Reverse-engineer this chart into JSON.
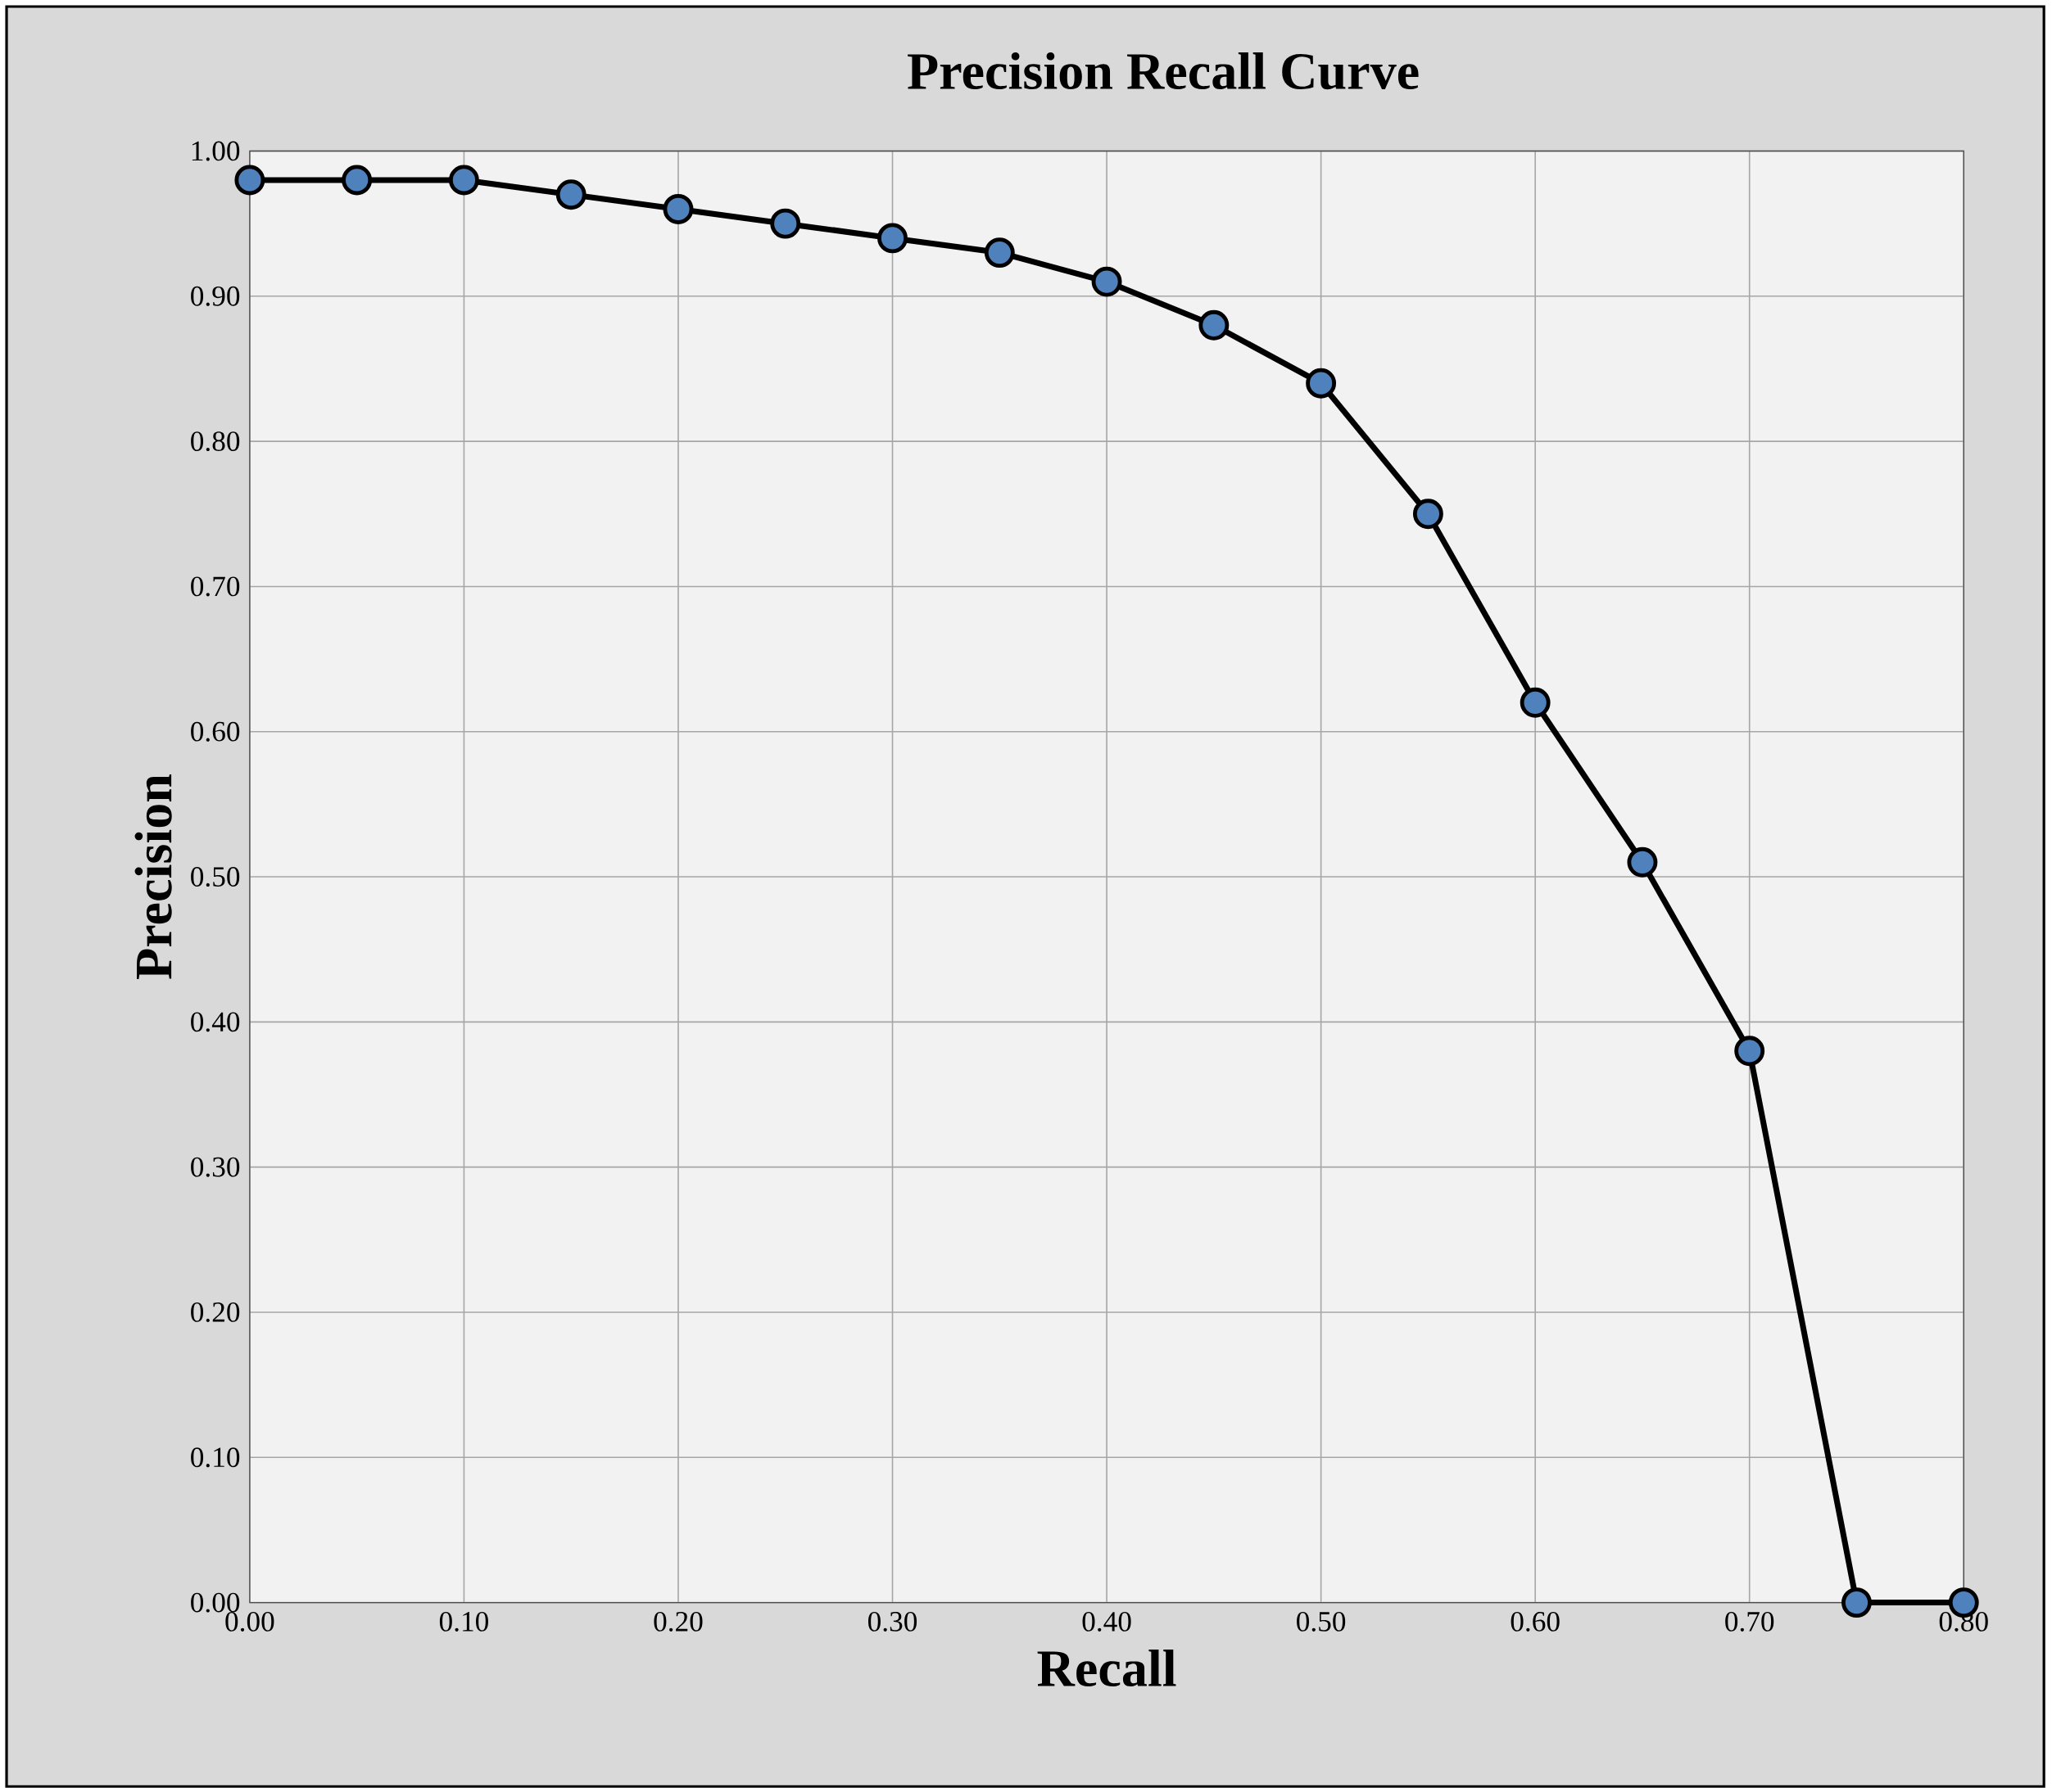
{
  "chart_data": {
    "type": "line",
    "title": "Precision  Recall Curve",
    "xlabel": "Recall",
    "ylabel": "Precision",
    "x": [
      0,
      0.05,
      0.1,
      0.15,
      0.2,
      0.25,
      0.3,
      0.35,
      0.4,
      0.45,
      0.5,
      0.55,
      0.6,
      0.65,
      0.7,
      0.75,
      0.8
    ],
    "series": [
      {
        "color": "#4f81bd",
        "values": [
          0.98,
          0.98,
          0.98,
          0.97,
          0.96,
          0.95,
          0.94,
          0.93,
          0.91,
          0.88,
          0.84,
          0.75,
          0.62,
          0.51,
          0.38,
          0,
          0
        ]
      }
    ],
    "xlim": [
      0,
      0.8
    ],
    "ylim": [
      0,
      1
    ],
    "xticks": [
      {
        "value": 0,
        "label": "0.00"
      },
      {
        "value": 0.1,
        "label": "0.10"
      },
      {
        "value": 0.2,
        "label": "0.20"
      },
      {
        "value": 0.3,
        "label": "0.30"
      },
      {
        "value": 0.4,
        "label": "0.40"
      },
      {
        "value": 0.5,
        "label": "0.50"
      },
      {
        "value": 0.6,
        "label": "0.60"
      },
      {
        "value": 0.7,
        "label": "0.70"
      },
      {
        "value": 0.8,
        "label": "0.80"
      }
    ],
    "yticks": [
      {
        "value": 0,
        "label": "0.00"
      },
      {
        "value": 0.1,
        "label": "0.10"
      },
      {
        "value": 0.2,
        "label": "0.20"
      },
      {
        "value": 0.3,
        "label": "0.30"
      },
      {
        "value": 0.4,
        "label": "0.40"
      },
      {
        "value": 0.5,
        "label": "0.50"
      },
      {
        "value": 0.6,
        "label": "0.60"
      },
      {
        "value": 0.7,
        "label": "0.70"
      },
      {
        "value": 0.8,
        "label": "0.80"
      },
      {
        "value": 0.9,
        "label": "0.90"
      },
      {
        "value": 1,
        "label": "1.00"
      }
    ],
    "grid": true,
    "marker": "circle",
    "line_style": "solid"
  }
}
